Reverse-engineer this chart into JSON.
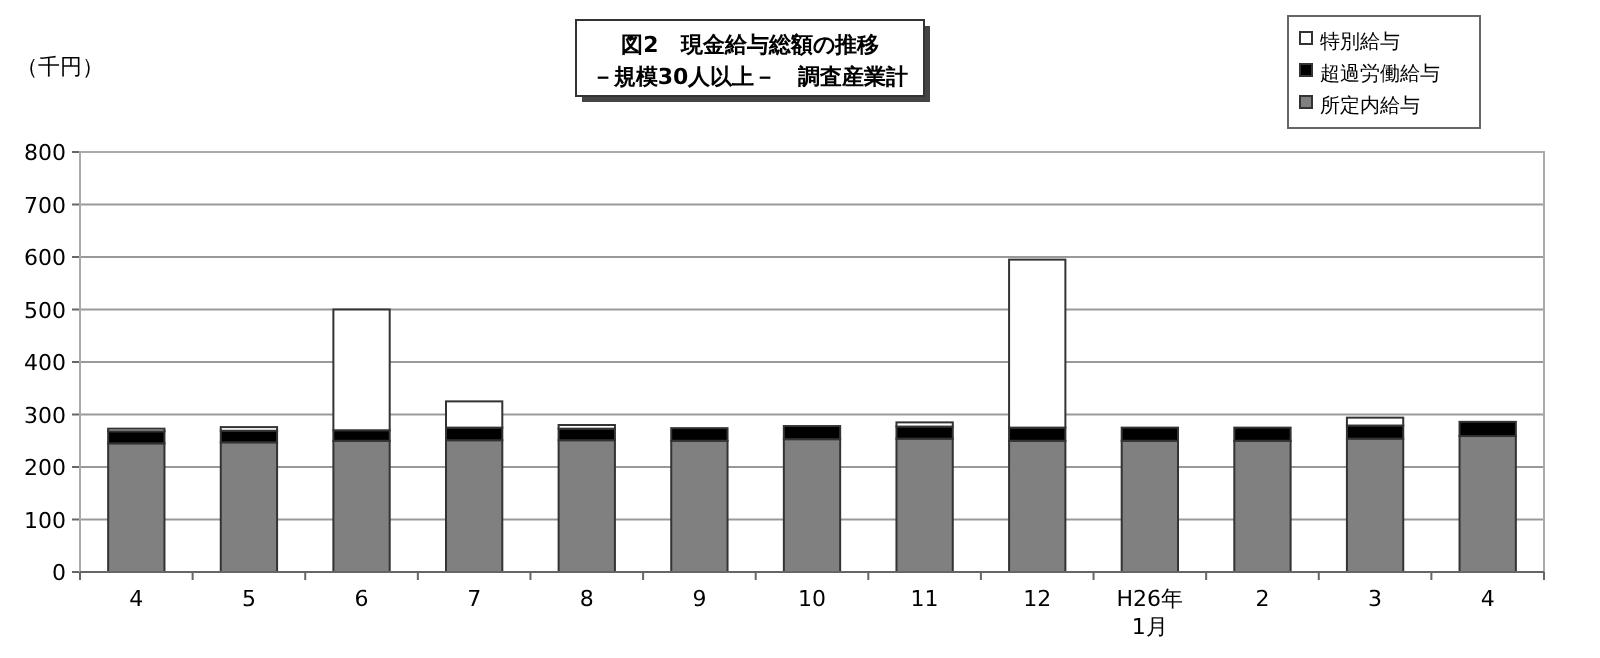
{
  "chart_data": {
    "type": "bar",
    "stacked": true,
    "title": "図2　現金給与総額の推移",
    "subtitle": "－規模30人以上－　調査産業計",
    "ylabel": "（千円）",
    "categories": [
      "4",
      "5",
      "6",
      "7",
      "8",
      "9",
      "10",
      "11",
      "12",
      "H26年\n1月",
      "2",
      "3",
      "4"
    ],
    "series": [
      {
        "name": "所定内給与",
        "color": "#808080",
        "values": [
          245,
          247,
          250,
          251,
          251,
          250,
          253,
          254,
          250,
          250,
          250,
          254,
          259
        ]
      },
      {
        "name": "超過労働給与",
        "color": "#000000",
        "values": [
          23,
          22,
          20,
          24,
          22,
          24,
          25,
          23,
          25,
          25,
          25,
          25,
          27
        ]
      },
      {
        "name": "特別給与",
        "color": "#ffffff",
        "values": [
          5,
          7,
          230,
          50,
          7,
          0,
          null,
          8,
          320,
          0,
          0,
          15,
          null
        ]
      }
    ],
    "ylim": [
      0,
      800
    ],
    "yticks": [
      0,
      100,
      200,
      300,
      400,
      500,
      600,
      700,
      800
    ],
    "grid": "y",
    "legend": "top right"
  }
}
